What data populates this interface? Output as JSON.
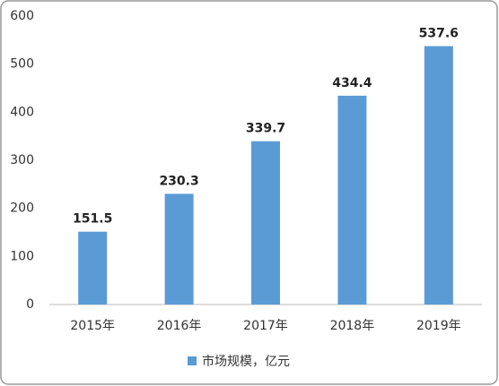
{
  "chart_data": {
    "type": "bar",
    "categories": [
      "2015年",
      "2016年",
      "2017年",
      "2018年",
      "2019年"
    ],
    "series": [
      {
        "name": "市场规模，亿元",
        "color": "#5b9bd5",
        "values": [
          151.5,
          230.3,
          339.7,
          434.4,
          537.6
        ]
      }
    ],
    "ylim": [
      0,
      600
    ],
    "yticks": [
      0,
      100,
      200,
      300,
      400,
      500,
      600
    ],
    "grid": false,
    "legend": "bottom"
  }
}
